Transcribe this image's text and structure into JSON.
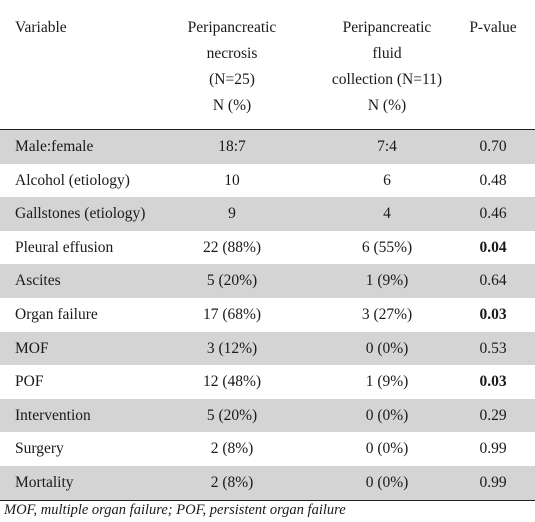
{
  "table": {
    "headers": [
      [
        "Variable"
      ],
      [
        "Peripancreatic",
        "necrosis",
        "(N=25)",
        "N  (%)"
      ],
      [
        "Peripancreatic",
        "fluid",
        "collection  (N=11)",
        "N  (%)"
      ],
      [
        "P-value"
      ]
    ],
    "rows": [
      {
        "variable": "Male:female",
        "necrosis": "18:7",
        "fluid": "7:4",
        "p": "0.70",
        "bold": false
      },
      {
        "variable": "Alcohol (etiology)",
        "necrosis": "10",
        "fluid": "6",
        "p": "0.48",
        "bold": false
      },
      {
        "variable": "Gallstones (etiology)",
        "necrosis": "9",
        "fluid": "4",
        "p": "0.46",
        "bold": false
      },
      {
        "variable": "Pleural effusion",
        "necrosis": "22 (88%)",
        "fluid": "6 (55%)",
        "p": "0.04",
        "bold": true
      },
      {
        "variable": "Ascites",
        "necrosis": "5 (20%)",
        "fluid": "1 (9%)",
        "p": "0.64",
        "bold": false
      },
      {
        "variable": "Organ failure",
        "necrosis": "17 (68%)",
        "fluid": "3 (27%)",
        "p": "0.03",
        "bold": true
      },
      {
        "variable": "MOF",
        "necrosis": "3 (12%)",
        "fluid": "0 (0%)",
        "p": "0.53",
        "bold": false
      },
      {
        "variable": "POF",
        "necrosis": "12 (48%)",
        "fluid": "1 (9%)",
        "p": "0.03",
        "bold": true
      },
      {
        "variable": "Intervention",
        "necrosis": "5 (20%)",
        "fluid": "0 (0%)",
        "p": "0.29",
        "bold": false
      },
      {
        "variable": "Surgery",
        "necrosis": "2 (8%)",
        "fluid": "0 (0%)",
        "p": "0.99",
        "bold": false
      },
      {
        "variable": "Mortality",
        "necrosis": "2 (8%)",
        "fluid": "0 (0%)",
        "p": "0.99",
        "bold": false
      }
    ]
  },
  "footnote": "MOF, multiple organ failure; POF, persistent organ failure",
  "colors": {
    "row_shade": "#d4d4d4",
    "text": "#1a1a1a",
    "rule": "#222222"
  }
}
